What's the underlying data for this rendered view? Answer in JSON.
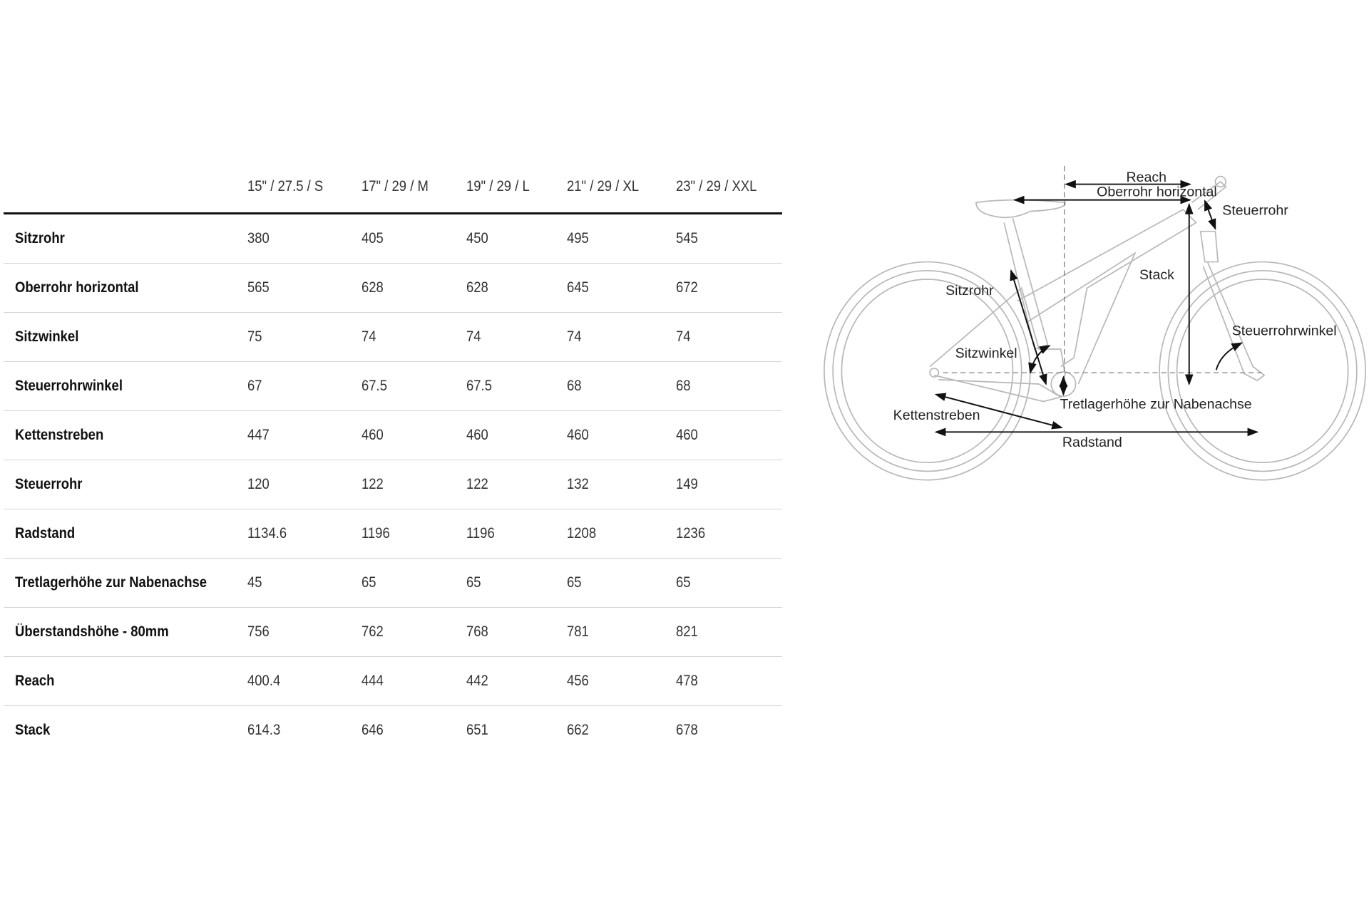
{
  "table": {
    "columns": [
      "15\" / 27.5 / S",
      "17\" / 29 / M",
      "19\" / 29 / L",
      "21\" / 29 / XL",
      "23\" / 29 / XXL"
    ],
    "rows": [
      {
        "label": "Sitzrohr",
        "values": [
          "380",
          "405",
          "450",
          "495",
          "545"
        ]
      },
      {
        "label": "Oberrohr horizontal",
        "values": [
          "565",
          "628",
          "628",
          "645",
          "672"
        ]
      },
      {
        "label": "Sitzwinkel",
        "values": [
          "75",
          "74",
          "74",
          "74",
          "74"
        ]
      },
      {
        "label": "Steuerrohrwinkel",
        "values": [
          "67",
          "67.5",
          "67.5",
          "68",
          "68"
        ]
      },
      {
        "label": "Kettenstreben",
        "values": [
          "447",
          "460",
          "460",
          "460",
          "460"
        ]
      },
      {
        "label": "Steuerrohr",
        "values": [
          "120",
          "122",
          "122",
          "132",
          "149"
        ]
      },
      {
        "label": "Radstand",
        "values": [
          "1134.6",
          "1196",
          "1196",
          "1208",
          "1236"
        ]
      },
      {
        "label": "Tretlagerhöhe zur Nabenachse",
        "values": [
          "45",
          "65",
          "65",
          "65",
          "65"
        ]
      },
      {
        "label": "Überstandshöhe - 80mm",
        "values": [
          "756",
          "762",
          "768",
          "781",
          "821"
        ]
      },
      {
        "label": "Reach",
        "values": [
          "400.4",
          "444",
          "442",
          "456",
          "478"
        ]
      },
      {
        "label": "Stack",
        "values": [
          "614.3",
          "646",
          "651",
          "662",
          "678"
        ]
      }
    ]
  },
  "diagram": {
    "labels": {
      "reach": "Reach",
      "oberrohr": "Oberrohr horizontal",
      "steuerrohr": "Steuerrohr",
      "stack": "Stack",
      "sitzrohr": "Sitzrohr",
      "sitzwinkel": "Sitzwinkel",
      "steuerrohrwinkel": "Steuerrohrwinkel",
      "tretlager": "Tretlagerhöhe zur Nabenachse",
      "kettenstreben": "Kettenstreben",
      "radstand": "Radstand"
    },
    "frame_color": "#b8b8b8",
    "arrow_color": "#111111"
  }
}
